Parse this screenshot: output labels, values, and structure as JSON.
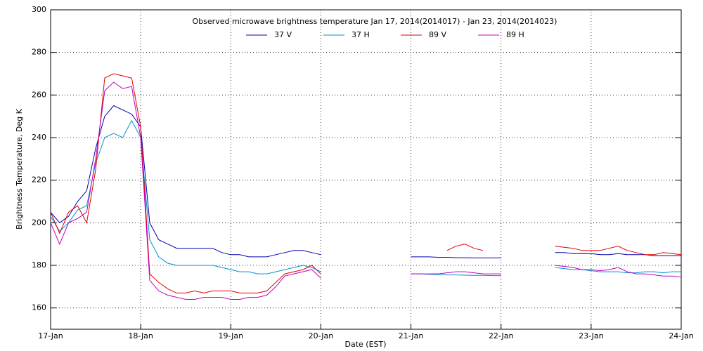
{
  "chart_data": {
    "type": "line",
    "title": "Observed microwave brightness temperature Jan 17, 2014(2014017) - Jan 23, 2014(2014023)",
    "xlabel": "Date (EST)",
    "ylabel": "Brightness Temperature, Deg K",
    "x": [
      0,
      0.1,
      0.2,
      0.3,
      0.4,
      0.5,
      0.6,
      0.7,
      0.8,
      0.9,
      1.0,
      1.1,
      1.2,
      1.3,
      1.4,
      1.5,
      1.6,
      1.7,
      1.8,
      1.9,
      2.0,
      2.1,
      2.2,
      2.3,
      2.4,
      2.5,
      2.6,
      2.7,
      2.8,
      2.9,
      3.0,
      3.5,
      4.0,
      4.1,
      4.2,
      4.3,
      4.4,
      4.5,
      4.6,
      4.7,
      4.8,
      4.9,
      5.0,
      5.3,
      5.6,
      5.7,
      5.8,
      5.9,
      6.0,
      6.1,
      6.2,
      6.3,
      6.4,
      6.5,
      6.6,
      6.7,
      6.8,
      6.9,
      7.0
    ],
    "series": [
      {
        "name": "37 V",
        "color": "#0000b0",
        "values": [
          205,
          200,
          203,
          210,
          215,
          235,
          250,
          255,
          253,
          251,
          245,
          200,
          192,
          190,
          188,
          188,
          188,
          188,
          188,
          186,
          185,
          185,
          184,
          184,
          184,
          185,
          186,
          187,
          187,
          186,
          185,
          null,
          184,
          184,
          184,
          183.8,
          183.8,
          183.6,
          183.6,
          183.5,
          183.5,
          183.5,
          183.5,
          null,
          186,
          186,
          185.5,
          185.5,
          185.5,
          185,
          185,
          185.5,
          185,
          185,
          185,
          184.5,
          184.5,
          184.5,
          184.5
        ]
      },
      {
        "name": "37 H",
        "color": "#0090d0",
        "values": [
          203,
          196,
          200,
          206,
          208,
          228,
          240,
          242,
          240,
          248,
          240,
          192,
          184,
          181,
          180,
          180,
          180,
          180,
          180,
          179,
          178,
          177,
          177,
          176,
          176,
          177,
          178,
          179,
          180,
          179,
          177,
          null,
          176,
          176,
          175.8,
          175.6,
          175.5,
          175.5,
          175.4,
          175.3,
          175.3,
          175.2,
          175.2,
          null,
          179,
          178.5,
          178,
          178,
          177.5,
          177,
          177,
          177,
          176.5,
          176.5,
          177,
          177,
          176.5,
          177,
          177
        ]
      },
      {
        "name": "89 V",
        "color": "#e00000",
        "values": [
          205,
          195,
          205,
          208,
          200,
          225,
          268,
          270,
          269,
          268,
          245,
          176,
          172,
          169,
          167,
          167,
          168,
          167,
          168,
          168,
          168,
          167,
          167,
          167,
          168,
          172,
          176,
          177,
          178,
          180,
          176,
          null,
          null,
          null,
          null,
          null,
          187,
          189,
          190,
          188,
          187,
          null,
          null,
          null,
          189,
          188.5,
          188,
          187,
          187,
          187,
          188,
          189,
          187,
          186,
          185,
          185,
          186,
          185.5,
          185
        ]
      },
      {
        "name": "89 H",
        "color": "#c000c0",
        "values": [
          200,
          190,
          200,
          202,
          205,
          230,
          262,
          266,
          263,
          264,
          240,
          173,
          168,
          166,
          165,
          164,
          164,
          165,
          165,
          165,
          164,
          164,
          165,
          165,
          166,
          170,
          175,
          176,
          177,
          178,
          174,
          null,
          176,
          176,
          176,
          176,
          176.5,
          177,
          177,
          176.5,
          176,
          176,
          176,
          null,
          180,
          179.5,
          179,
          178,
          178,
          177.5,
          178,
          179,
          177,
          176,
          176,
          175.5,
          175,
          175,
          174.5
        ]
      }
    ],
    "xlim": [
      0,
      7
    ],
    "xticks": [
      {
        "value": 0,
        "label": "17-Jan"
      },
      {
        "value": 1,
        "label": "18-Jan"
      },
      {
        "value": 2,
        "label": "19-Jan"
      },
      {
        "value": 3,
        "label": "20-Jan"
      },
      {
        "value": 4,
        "label": "21-Jan"
      },
      {
        "value": 5,
        "label": "22-Jan"
      },
      {
        "value": 6,
        "label": "23-Jan"
      },
      {
        "value": 7,
        "label": "24-Jan"
      }
    ],
    "ylim": [
      150,
      300
    ],
    "yticks": [
      160,
      180,
      200,
      220,
      240,
      260,
      280,
      300
    ],
    "grid": true
  }
}
